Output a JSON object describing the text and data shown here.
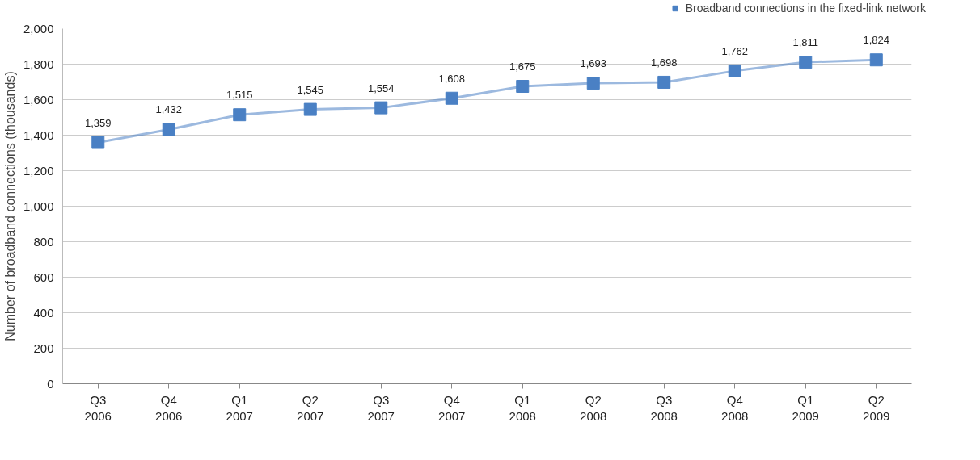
{
  "chart_data": {
    "type": "line",
    "ylabel": "Number of broadband connections (thousands)",
    "categories": [
      "Q3 2006",
      "Q4 2006",
      "Q1 2007",
      "Q2 2007",
      "Q3 2007",
      "Q4 2007",
      "Q1 2008",
      "Q2 2008",
      "Q3 2008",
      "Q4 2008",
      "Q1 2009",
      "Q2 2009"
    ],
    "series": [
      {
        "name": "Broadband connections in the fixed-link network",
        "color": "#4a80c4",
        "values": [
          1359,
          1432,
          1515,
          1545,
          1554,
          1608,
          1675,
          1693,
          1698,
          1762,
          1811,
          1824
        ],
        "value_labels": [
          "1,359",
          "1,432",
          "1,515",
          "1,545",
          "1,554",
          "1,608",
          "1,675",
          "1,693",
          "1,698",
          "1,762",
          "1,811",
          "1,824"
        ]
      }
    ],
    "ylim": [
      0,
      2000
    ],
    "yticks": [
      0,
      200,
      400,
      600,
      800,
      {
        "value": 1000,
        "label": "1,000"
      },
      {
        "value": 1200,
        "label": "1,200"
      },
      {
        "value": 1400,
        "label": "1,400"
      },
      {
        "value": 1600,
        "label": "1,600"
      },
      {
        "value": 1800,
        "label": "1,800"
      },
      {
        "value": 2000,
        "label": "2,000"
      }
    ],
    "grid": "y",
    "legend": "top right",
    "marker": "square",
    "line_style": "solid"
  }
}
